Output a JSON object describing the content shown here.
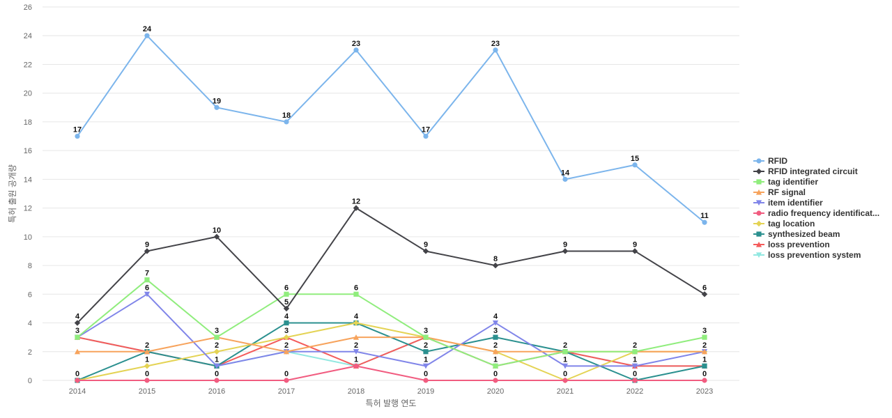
{
  "chart_data": {
    "type": "line",
    "xlabel": "특허 발행 연도",
    "ylabel": "특허 출원 공개량",
    "x": [
      2014,
      2015,
      2016,
      2017,
      2018,
      2019,
      2020,
      2021,
      2022,
      2023
    ],
    "ylim": [
      0,
      26
    ],
    "yticks": [
      0,
      2,
      4,
      6,
      8,
      10,
      12,
      14,
      16,
      18,
      20,
      22,
      24,
      26
    ],
    "grid": "horizontal",
    "legend_position": "right",
    "series": [
      {
        "name": "RFID",
        "color": "#7cb5ec",
        "marker": "circle",
        "labels_shown": true,
        "values": [
          17,
          24,
          19,
          18,
          23,
          17,
          23,
          14,
          15,
          11
        ]
      },
      {
        "name": "RFID integrated circuit",
        "color": "#434348",
        "marker": "diamond",
        "labels_shown": true,
        "values": [
          4,
          9,
          10,
          5,
          12,
          9,
          8,
          9,
          9,
          6
        ]
      },
      {
        "name": "tag identifier",
        "color": "#90ed7d",
        "marker": "square",
        "labels_shown": true,
        "values": [
          3,
          7,
          3,
          6,
          6,
          3,
          1,
          2,
          2,
          3
        ]
      },
      {
        "name": "RF signal",
        "color": "#f7a35c",
        "marker": "triangle",
        "labels_shown": false,
        "values": [
          2,
          2,
          3,
          2,
          3,
          3,
          2,
          2,
          2,
          2
        ]
      },
      {
        "name": "item identifier",
        "color": "#8085e9",
        "marker": "triangle-down",
        "labels_shown": true,
        "values": [
          3,
          6,
          1,
          2,
          2,
          1,
          4,
          1,
          1,
          2
        ]
      },
      {
        "name": "radio frequency identificat...",
        "color": "#f15c80",
        "marker": "circle",
        "labels_shown": true,
        "values": [
          0,
          0,
          0,
          0,
          1,
          0,
          0,
          0,
          0,
          0
        ]
      },
      {
        "name": "tag location",
        "color": "#e4d354",
        "marker": "diamond",
        "labels_shown": true,
        "values": [
          0,
          1,
          2,
          3,
          4,
          3,
          2,
          0,
          2,
          2
        ]
      },
      {
        "name": "synthesized beam",
        "color": "#2b908f",
        "marker": "square",
        "labels_shown": true,
        "values": [
          0,
          2,
          1,
          4,
          4,
          2,
          3,
          2,
          0,
          1
        ]
      },
      {
        "name": "loss prevention",
        "color": "#f45b5b",
        "marker": "triangle",
        "labels_shown": true,
        "values": [
          3,
          2,
          1,
          3,
          1,
          3,
          1,
          2,
          1,
          1
        ]
      },
      {
        "name": "loss prevention system",
        "color": "#91e8e1",
        "marker": "triangle-down",
        "labels_shown": true,
        "values": [
          3,
          2,
          1,
          2,
          1,
          3,
          1,
          2,
          1,
          1
        ]
      }
    ]
  }
}
